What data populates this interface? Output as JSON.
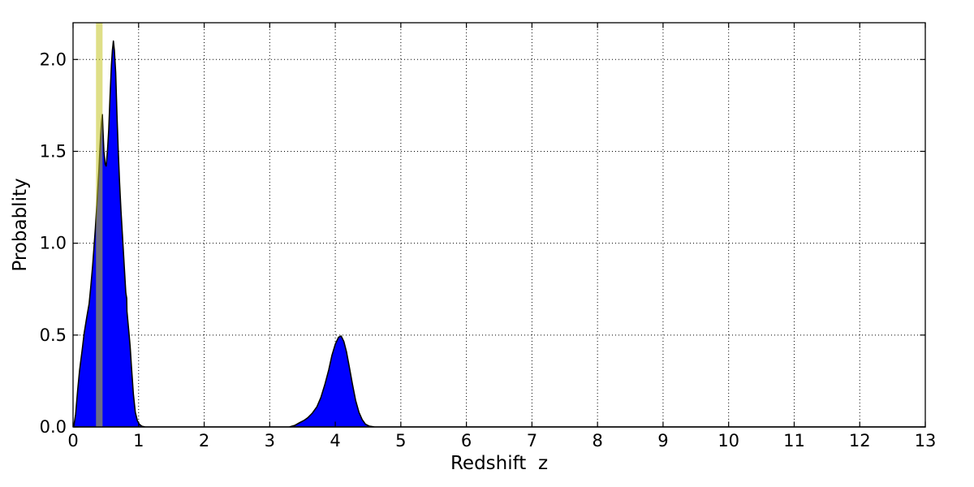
{
  "chart_data": {
    "type": "area",
    "title": "",
    "xlabel": "Redshift  z",
    "ylabel": "Probablity",
    "xlim": [
      0,
      13
    ],
    "ylim": [
      0,
      2.2
    ],
    "xticks": [
      0,
      1,
      2,
      3,
      4,
      5,
      6,
      7,
      8,
      9,
      10,
      11,
      12,
      13
    ],
    "xtick_labels": [
      "0",
      "1",
      "2",
      "3",
      "4",
      "5",
      "6",
      "7",
      "8",
      "9",
      "10",
      "11",
      "12",
      "13"
    ],
    "yticks": [
      0.0,
      0.5,
      1.0,
      1.5,
      2.0
    ],
    "ytick_labels": [
      "0.0",
      "0.5",
      "1.0",
      "1.5",
      "2.0"
    ],
    "grid": true,
    "grid_style": "dotted",
    "legend": "none",
    "series": [
      {
        "name": "probability-density-curve",
        "fill_color": "#0000ff",
        "edge_color": "#000000",
        "points": [
          [
            0.01,
            0.0
          ],
          [
            0.04,
            0.07
          ],
          [
            0.07,
            0.2
          ],
          [
            0.1,
            0.31
          ],
          [
            0.14,
            0.42
          ],
          [
            0.17,
            0.51
          ],
          [
            0.21,
            0.6
          ],
          [
            0.245,
            0.67
          ],
          [
            0.27,
            0.76
          ],
          [
            0.3,
            0.88
          ],
          [
            0.34,
            1.08
          ],
          [
            0.37,
            1.25
          ],
          [
            0.395,
            1.4
          ],
          [
            0.42,
            1.58
          ],
          [
            0.435,
            1.66
          ],
          [
            0.447,
            1.7
          ],
          [
            0.455,
            1.62
          ],
          [
            0.47,
            1.5
          ],
          [
            0.49,
            1.43
          ],
          [
            0.505,
            1.42
          ],
          [
            0.525,
            1.5
          ],
          [
            0.545,
            1.62
          ],
          [
            0.565,
            1.8
          ],
          [
            0.585,
            1.97
          ],
          [
            0.6,
            2.05
          ],
          [
            0.615,
            2.1
          ],
          [
            0.63,
            2.05
          ],
          [
            0.65,
            1.93
          ],
          [
            0.67,
            1.7
          ],
          [
            0.69,
            1.5
          ],
          [
            0.71,
            1.33
          ],
          [
            0.73,
            1.18
          ],
          [
            0.76,
            1.0
          ],
          [
            0.79,
            0.82
          ],
          [
            0.805,
            0.73
          ],
          [
            0.818,
            0.7
          ],
          [
            0.822,
            0.63
          ],
          [
            0.85,
            0.52
          ],
          [
            0.87,
            0.44
          ],
          [
            0.89,
            0.33
          ],
          [
            0.92,
            0.18
          ],
          [
            0.95,
            0.08
          ],
          [
            0.98,
            0.035
          ],
          [
            1.01,
            0.015
          ],
          [
            1.05,
            0.004
          ],
          [
            1.1,
            0.0
          ],
          [
            3.3,
            0.0
          ],
          [
            3.38,
            0.008
          ],
          [
            3.45,
            0.022
          ],
          [
            3.52,
            0.035
          ],
          [
            3.58,
            0.05
          ],
          [
            3.65,
            0.075
          ],
          [
            3.72,
            0.11
          ],
          [
            3.78,
            0.16
          ],
          [
            3.84,
            0.23
          ],
          [
            3.9,
            0.31
          ],
          [
            3.95,
            0.39
          ],
          [
            4.0,
            0.45
          ],
          [
            4.05,
            0.488
          ],
          [
            4.09,
            0.495
          ],
          [
            4.13,
            0.465
          ],
          [
            4.17,
            0.41
          ],
          [
            4.21,
            0.335
          ],
          [
            4.26,
            0.235
          ],
          [
            4.31,
            0.145
          ],
          [
            4.36,
            0.08
          ],
          [
            4.41,
            0.04
          ],
          [
            4.46,
            0.015
          ],
          [
            4.52,
            0.004
          ],
          [
            4.6,
            0.0
          ],
          [
            13.0,
            0.0
          ]
        ]
      }
    ],
    "highlight_band": {
      "x0": 0.35,
      "x1": 0.45,
      "color": "#c4c425",
      "alpha": 0.55
    },
    "colors": {
      "curve_fill": "#0000ff",
      "curve_edge": "#000000",
      "band": "#c4c425",
      "grid": "#000000",
      "frame": "#000000",
      "background": "#ffffff"
    }
  }
}
